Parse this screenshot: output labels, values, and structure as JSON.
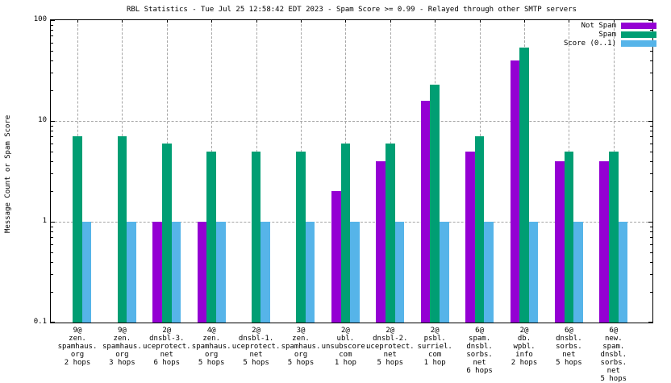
{
  "title": "RBL Statistics - Tue Jul 25 12:58:42 EDT 2023 - Spam Score >= 0.99 - Relayed through other SMTP servers",
  "colors": {
    "not_spam": "#9400d3",
    "spam": "#009e73",
    "score": "#56b4e9",
    "grid": "#a6a6a6",
    "axis": "#000000",
    "background": "#ffffff"
  },
  "legend": {
    "position": "top-right",
    "items": [
      "Not Spam",
      "Spam",
      "Score (0..1)"
    ]
  },
  "chart_data": {
    "type": "bar",
    "title": "RBL Statistics - Tue Jul 25 12:58:42 EDT 2023 - Spam Score >= 0.99 - Relayed through other SMTP servers",
    "xlabel": "",
    "ylabel": "Message Count or Spam Score",
    "yscale": "log",
    "ylim": [
      0.1,
      100
    ],
    "yticks": [
      {
        "label": "100",
        "value": 100
      },
      {
        "label": "10",
        "value": 10
      },
      {
        "label": "1",
        "value": 1
      },
      {
        "label": "0.1",
        "value": 0.1
      }
    ],
    "grid": true,
    "legend_position": "top-right",
    "categories": [
      {
        "lines": [
          "9@",
          "zen.",
          "spamhaus.",
          "org",
          "2 hops"
        ]
      },
      {
        "lines": [
          "9@",
          "zen.",
          "spamhaus.",
          "org",
          "3 hops"
        ]
      },
      {
        "lines": [
          "2@",
          "dnsbl-3.",
          "uceprotect.",
          "net",
          "6 hops"
        ]
      },
      {
        "lines": [
          "4@",
          "zen.",
          "spamhaus.",
          "org",
          "5 hops"
        ]
      },
      {
        "lines": [
          "2@",
          "dnsbl-1.",
          "uceprotect.",
          "net",
          "5 hops"
        ]
      },
      {
        "lines": [
          "3@",
          "zen.",
          "spamhaus.",
          "org",
          "5 hops"
        ]
      },
      {
        "lines": [
          "2@",
          "ubl.",
          "unsubscore.",
          "com",
          "1 hop"
        ]
      },
      {
        "lines": [
          "2@",
          "dnsbl-2.",
          "uceprotect.",
          "net",
          "5 hops"
        ]
      },
      {
        "lines": [
          "2@",
          "psbl.",
          "surriel.",
          "com",
          "1 hop"
        ]
      },
      {
        "lines": [
          "6@",
          "spam.",
          "dnsbl.",
          "sorbs.",
          "net",
          "6 hops"
        ]
      },
      {
        "lines": [
          "2@",
          "db.",
          "wpbl.",
          "info",
          "2 hops"
        ]
      },
      {
        "lines": [
          "6@",
          "dnsbl.",
          "sorbs.",
          "net",
          "5 hops"
        ]
      },
      {
        "lines": [
          "6@",
          "new.",
          "spam.",
          "dnsbl.",
          "sorbs.",
          "net",
          "5 hops"
        ]
      }
    ],
    "series": [
      {
        "name": "Not Spam",
        "color": "#9400d3",
        "values": [
          0,
          0,
          1,
          1,
          0,
          0,
          2,
          4,
          16,
          5,
          40,
          4,
          4
        ]
      },
      {
        "name": "Spam",
        "color": "#009e73",
        "values": [
          7,
          7,
          6,
          5,
          5,
          5,
          6,
          6,
          23,
          7,
          53,
          5,
          5
        ]
      },
      {
        "name": "Score (0..1)",
        "color": "#56b4e9",
        "values": [
          1,
          1,
          1,
          1,
          1,
          1,
          1,
          1,
          1,
          1,
          1,
          1,
          1
        ]
      }
    ]
  }
}
